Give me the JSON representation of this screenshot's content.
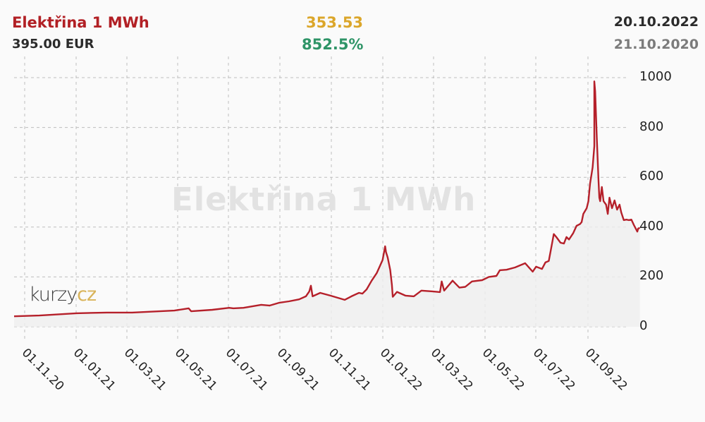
{
  "header": {
    "title": "Elektřina 1 MWh",
    "price": "395.00 EUR",
    "change_abs": "353.53",
    "change_pct": "852.5%",
    "date_end": "20.10.2022",
    "date_start": "21.10.2020"
  },
  "watermark": "Elektřina 1 MWh",
  "logo": {
    "part1": "kurzy",
    "part2": "cz"
  },
  "colors": {
    "title": "#b22025",
    "line": "#b5202a",
    "change_abs": "#dba62a",
    "change_pct": "#2e9467",
    "grid": "#bdbdbd",
    "fill": "#f0f0f0"
  },
  "chart_data": {
    "type": "line",
    "title": "Elektřina 1 MWh",
    "xlabel": "",
    "ylabel": "EUR",
    "ylim": [
      0,
      1000
    ],
    "yticks": [
      0,
      200,
      400,
      600,
      800,
      1000
    ],
    "xticks": [
      "01.11.20",
      "01.01.21",
      "01.03.21",
      "01.05.21",
      "01.07.21",
      "01.09.21",
      "01.11.21",
      "01.01.22",
      "01.03.22",
      "01.05.22",
      "01.07.22",
      "01.09.22"
    ],
    "grid": true,
    "x_start": "21.10.2020",
    "x_end": "20.10.2022",
    "series": [
      {
        "name": "Elektřina 1 MWh",
        "points_day_value": [
          [
            0,
            42
          ],
          [
            30,
            45
          ],
          [
            74,
            54
          ],
          [
            110,
            57
          ],
          [
            140,
            57
          ],
          [
            190,
            65
          ],
          [
            207,
            74
          ],
          [
            210,
            62
          ],
          [
            235,
            68
          ],
          [
            255,
            76
          ],
          [
            260,
            74
          ],
          [
            272,
            76
          ],
          [
            293,
            88
          ],
          [
            303,
            85
          ],
          [
            314,
            96
          ],
          [
            326,
            102
          ],
          [
            338,
            110
          ],
          [
            346,
            122
          ],
          [
            350,
            142
          ],
          [
            352,
            165
          ],
          [
            354,
            122
          ],
          [
            363,
            136
          ],
          [
            375,
            125
          ],
          [
            392,
            108
          ],
          [
            400,
            122
          ],
          [
            409,
            136
          ],
          [
            413,
            133
          ],
          [
            418,
            150
          ],
          [
            424,
            185
          ],
          [
            430,
            215
          ],
          [
            434,
            245
          ],
          [
            437,
            268
          ],
          [
            440,
            323
          ],
          [
            441,
            300
          ],
          [
            443,
            278
          ],
          [
            446,
            228
          ],
          [
            448,
            168
          ],
          [
            449,
            120
          ],
          [
            454,
            140
          ],
          [
            464,
            125
          ],
          [
            474,
            122
          ],
          [
            483,
            145
          ],
          [
            496,
            142
          ],
          [
            505,
            139
          ],
          [
            507,
            182
          ],
          [
            510,
            145
          ],
          [
            520,
            185
          ],
          [
            528,
            157
          ],
          [
            535,
            160
          ],
          [
            543,
            182
          ],
          [
            555,
            187
          ],
          [
            563,
            200
          ],
          [
            572,
            204
          ],
          [
            576,
            227
          ],
          [
            584,
            229
          ],
          [
            594,
            238
          ],
          [
            606,
            255
          ],
          [
            615,
            221
          ],
          [
            619,
            241
          ],
          [
            626,
            232
          ],
          [
            630,
            258
          ],
          [
            634,
            264
          ],
          [
            636,
            300
          ],
          [
            640,
            372
          ],
          [
            643,
            360
          ],
          [
            648,
            337
          ],
          [
            652,
            334
          ],
          [
            655,
            360
          ],
          [
            658,
            350
          ],
          [
            663,
            376
          ],
          [
            667,
            405
          ],
          [
            671,
            412
          ],
          [
            673,
            420
          ],
          [
            675,
            453
          ],
          [
            679,
            476
          ],
          [
            681,
            504
          ],
          [
            683,
            575
          ],
          [
            685,
            618
          ],
          [
            686,
            640
          ],
          [
            688,
            725
          ],
          [
            688,
            880
          ],
          [
            688,
            985
          ],
          [
            689,
            945
          ],
          [
            691,
            760
          ],
          [
            693,
            590
          ],
          [
            694,
            518
          ],
          [
            695,
            504
          ],
          [
            697,
            561
          ],
          [
            699,
            504
          ],
          [
            702,
            490
          ],
          [
            704,
            453
          ],
          [
            706,
            518
          ],
          [
            709,
            476
          ],
          [
            712,
            507
          ],
          [
            715,
            470
          ],
          [
            718,
            490
          ],
          [
            720,
            459
          ],
          [
            723,
            428
          ],
          [
            726,
            430
          ],
          [
            729,
            428
          ],
          [
            732,
            430
          ],
          [
            735,
            408
          ],
          [
            739,
            382
          ],
          [
            740,
            394
          ],
          [
            742,
            397
          ]
        ]
      }
    ]
  }
}
